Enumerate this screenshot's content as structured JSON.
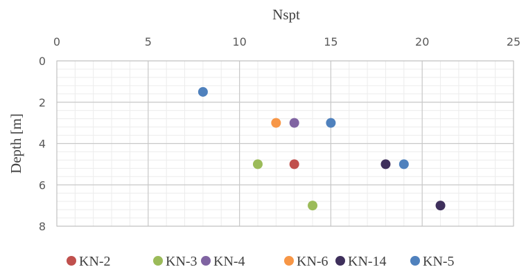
{
  "chart_data": {
    "type": "scatter",
    "title": "",
    "xlabel": "Nspt",
    "ylabel": "Depth [m]",
    "xlim": [
      0,
      25
    ],
    "ylim": [
      0,
      8
    ],
    "x_axis_position": "top",
    "y_axis_inverted": true,
    "xticks": [
      0,
      5,
      10,
      15,
      20,
      25
    ],
    "yticks": [
      0,
      2,
      4,
      6,
      8
    ],
    "grid": true,
    "minor_grid": true,
    "legend_position": "bottom",
    "series": [
      {
        "name": "KN-2",
        "color": "#c0504d",
        "points": [
          [
            13,
            5
          ]
        ]
      },
      {
        "name": "KN-3",
        "color": "#9bbb59",
        "points": [
          [
            11,
            5
          ],
          [
            14,
            7
          ]
        ]
      },
      {
        "name": "KN-4",
        "color": "#8064a2",
        "points": [
          [
            13,
            3
          ]
        ]
      },
      {
        "name": "KN-6",
        "color": "#f79646",
        "points": [
          [
            12,
            3
          ]
        ]
      },
      {
        "name": "KN-14",
        "color": "#3e2f5b",
        "points": [
          [
            18,
            5
          ],
          [
            21,
            7
          ]
        ]
      },
      {
        "name": "KN-5",
        "color": "#4f81bd",
        "points": [
          [
            8,
            1.5
          ],
          [
            15,
            3
          ],
          [
            19,
            5
          ]
        ]
      }
    ]
  }
}
